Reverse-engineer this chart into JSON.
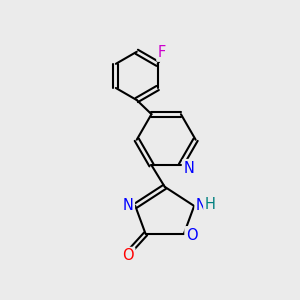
{
  "bg_color": "#ebebeb",
  "atom_colors": {
    "C": "#000000",
    "N": "#0000ff",
    "O": "#ff0000",
    "F": "#cc00cc",
    "H": "#008080"
  },
  "bond_color": "#000000",
  "lw": 1.5,
  "font_size": 10.5
}
